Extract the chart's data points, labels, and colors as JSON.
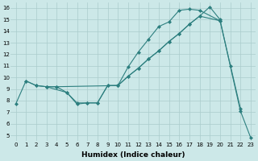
{
  "xlabel": "Humidex (Indice chaleur)",
  "bg_color": "#cce8e8",
  "grid_color": "#aacccc",
  "line_color": "#2d7f7f",
  "line1_x": [
    1,
    2,
    3,
    4,
    10,
    11,
    12,
    13,
    14,
    15,
    16,
    17,
    18,
    20,
    22
  ],
  "line1_y": [
    9.7,
    9.3,
    9.2,
    9.2,
    9.3,
    10.9,
    12.2,
    13.3,
    14.4,
    14.8,
    15.8,
    15.9,
    15.8,
    14.9,
    7.3
  ],
  "line2_x": [
    0,
    1,
    2,
    3,
    4,
    5,
    6,
    7,
    8,
    9,
    10,
    11,
    12,
    13,
    14,
    15,
    16,
    17,
    18,
    19,
    20,
    21,
    22,
    23
  ],
  "line2_y": [
    7.7,
    9.7,
    9.3,
    9.2,
    9.2,
    8.7,
    7.8,
    7.8,
    7.8,
    9.3,
    9.3,
    10.1,
    10.8,
    11.6,
    12.3,
    13.1,
    13.8,
    14.6,
    15.3,
    16.1,
    15.0,
    11.0,
    7.1,
    4.8
  ],
  "line3_x": [
    3,
    5,
    6,
    7,
    8,
    9,
    10,
    11,
    12,
    13,
    14,
    15,
    16,
    17,
    18,
    20
  ],
  "line3_y": [
    9.2,
    8.7,
    7.7,
    7.8,
    7.8,
    9.3,
    9.3,
    10.1,
    10.8,
    11.6,
    12.3,
    13.1,
    13.8,
    14.6,
    15.3,
    14.9
  ],
  "xlim": [
    -0.5,
    23.5
  ],
  "ylim": [
    4.5,
    16.5
  ],
  "xticks": [
    0,
    1,
    2,
    3,
    4,
    5,
    6,
    7,
    8,
    9,
    10,
    11,
    12,
    13,
    14,
    15,
    16,
    17,
    18,
    19,
    20,
    21,
    22,
    23
  ],
  "yticks": [
    5,
    6,
    7,
    8,
    9,
    10,
    11,
    12,
    13,
    14,
    15,
    16
  ],
  "marker": "D",
  "markersize": 2,
  "linewidth": 0.8,
  "tick_fontsize": 5.0,
  "xlabel_fontsize": 6.5
}
